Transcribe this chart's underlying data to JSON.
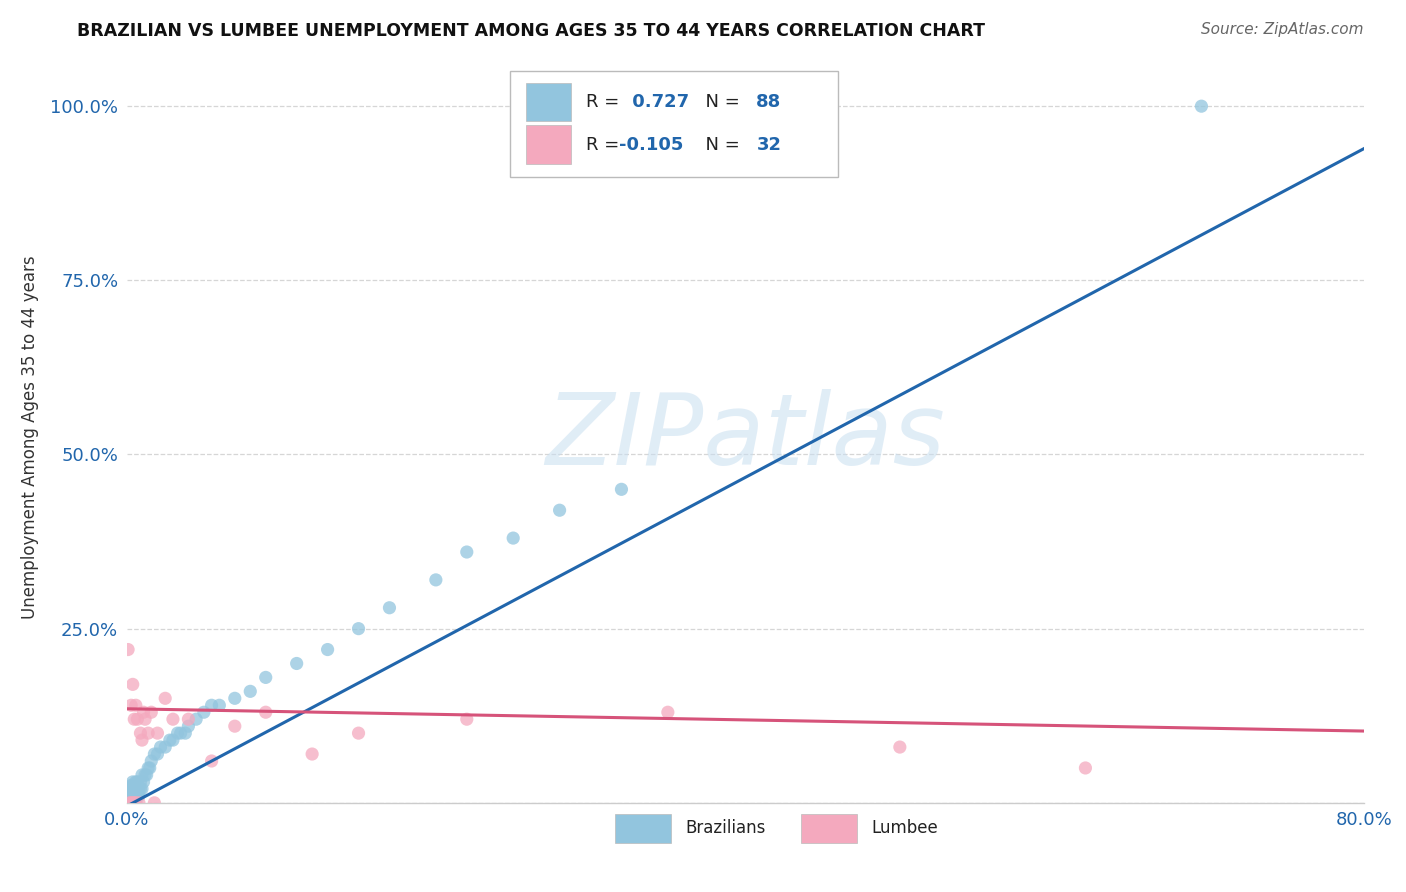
{
  "title": "BRAZILIAN VS LUMBEE UNEMPLOYMENT AMONG AGES 35 TO 44 YEARS CORRELATION CHART",
  "source": "Source: ZipAtlas.com",
  "ylabel": "Unemployment Among Ages 35 to 44 years",
  "xlim": [
    0.0,
    0.8
  ],
  "ylim": [
    0.0,
    1.05
  ],
  "brazilian_R": 0.727,
  "brazilian_N": 88,
  "lumbee_R": -0.105,
  "lumbee_N": 32,
  "brazilian_color": "#92c5de",
  "lumbee_color": "#f4a9be",
  "brazilian_line_color": "#2166ac",
  "lumbee_line_color": "#d6537a",
  "watermark_color": "#c8dff0",
  "background_color": "#ffffff",
  "grid_color": "#cccccc",
  "braz_line_slope": 1.18,
  "braz_line_intercept": -0.005,
  "lum_line_slope": -0.04,
  "lum_line_intercept": 0.135,
  "braz_scatter_x": [
    0.001,
    0.001,
    0.001,
    0.001,
    0.001,
    0.001,
    0.001,
    0.001,
    0.001,
    0.001,
    0.002,
    0.002,
    0.002,
    0.002,
    0.002,
    0.002,
    0.002,
    0.002,
    0.002,
    0.002,
    0.003,
    0.003,
    0.003,
    0.003,
    0.003,
    0.003,
    0.003,
    0.003,
    0.003,
    0.003,
    0.004,
    0.004,
    0.004,
    0.004,
    0.004,
    0.004,
    0.004,
    0.005,
    0.005,
    0.005,
    0.005,
    0.005,
    0.006,
    0.006,
    0.006,
    0.006,
    0.007,
    0.007,
    0.007,
    0.008,
    0.008,
    0.009,
    0.009,
    0.01,
    0.01,
    0.011,
    0.012,
    0.013,
    0.014,
    0.015,
    0.016,
    0.018,
    0.02,
    0.022,
    0.025,
    0.028,
    0.03,
    0.033,
    0.035,
    0.038,
    0.04,
    0.045,
    0.05,
    0.055,
    0.06,
    0.07,
    0.08,
    0.09,
    0.11,
    0.13,
    0.15,
    0.17,
    0.2,
    0.22,
    0.25,
    0.28,
    0.32,
    0.695
  ],
  "braz_scatter_y": [
    0.0,
    0.0,
    0.0,
    0.0,
    0.0,
    0.0,
    0.005,
    0.005,
    0.01,
    0.015,
    0.0,
    0.0,
    0.0,
    0.0,
    0.005,
    0.005,
    0.01,
    0.01,
    0.015,
    0.02,
    0.0,
    0.0,
    0.0,
    0.005,
    0.005,
    0.01,
    0.01,
    0.015,
    0.02,
    0.025,
    0.0,
    0.005,
    0.01,
    0.015,
    0.02,
    0.025,
    0.03,
    0.0,
    0.005,
    0.01,
    0.015,
    0.02,
    0.0,
    0.01,
    0.02,
    0.03,
    0.01,
    0.02,
    0.03,
    0.01,
    0.02,
    0.02,
    0.03,
    0.02,
    0.04,
    0.03,
    0.04,
    0.04,
    0.05,
    0.05,
    0.06,
    0.07,
    0.07,
    0.08,
    0.08,
    0.09,
    0.09,
    0.1,
    0.1,
    0.1,
    0.11,
    0.12,
    0.13,
    0.14,
    0.14,
    0.15,
    0.16,
    0.18,
    0.2,
    0.22,
    0.25,
    0.28,
    0.32,
    0.36,
    0.38,
    0.42,
    0.45,
    1.0
  ],
  "lum_scatter_x": [
    0.001,
    0.002,
    0.003,
    0.003,
    0.004,
    0.004,
    0.005,
    0.005,
    0.006,
    0.006,
    0.007,
    0.008,
    0.009,
    0.01,
    0.011,
    0.012,
    0.014,
    0.016,
    0.018,
    0.02,
    0.025,
    0.03,
    0.04,
    0.055,
    0.07,
    0.09,
    0.12,
    0.15,
    0.22,
    0.35,
    0.5,
    0.62
  ],
  "lum_scatter_y": [
    0.22,
    0.0,
    0.14,
    0.0,
    0.17,
    0.0,
    0.12,
    0.0,
    0.14,
    0.0,
    0.12,
    0.0,
    0.1,
    0.09,
    0.13,
    0.12,
    0.1,
    0.13,
    0.0,
    0.1,
    0.15,
    0.12,
    0.12,
    0.06,
    0.11,
    0.13,
    0.07,
    0.1,
    0.12,
    0.13,
    0.08,
    0.05
  ]
}
